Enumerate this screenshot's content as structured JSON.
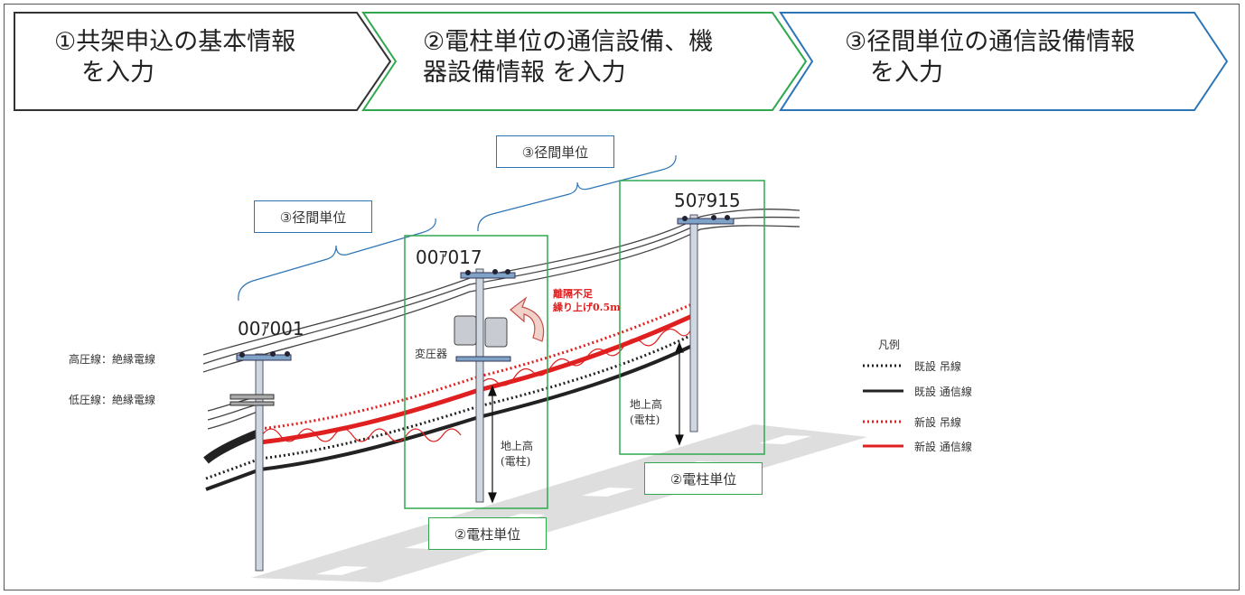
{
  "steps": [
    {
      "line1": "①共架申込の基本情報",
      "line2": "を入力"
    },
    {
      "line1": "②電柱単位の通信設備、機",
      "line2": "器設備情報 を入力"
    },
    {
      "line1": "③径間単位の通信設備情報",
      "line2": "を入力"
    }
  ],
  "span_labels": [
    "③径間単位",
    "③径間単位"
  ],
  "pole_labels": [
    "②電柱単位",
    "②電柱単位"
  ],
  "pole_ids": [
    "00ｱ001",
    "00ｱ017",
    "50ｱ915"
  ],
  "wire_labels": {
    "high_voltage": "高圧線：絶縁電線",
    "low_voltage": "低圧線：絶縁電線",
    "transformer": "変圧器"
  },
  "clearance_alert": {
    "line1": "離隔不足",
    "line2": "繰り上げ0.5m"
  },
  "ground_height": {
    "line1": "地上高",
    "line2": "(電柱)"
  },
  "legend": {
    "title": "凡例",
    "items": [
      {
        "label": "既設 吊線",
        "color": "#222222",
        "style": "dotted"
      },
      {
        "label": "既設 通信線",
        "color": "#222222",
        "style": "solid"
      },
      {
        "label": "新設 吊線",
        "color": "#e02020",
        "style": "dotted"
      },
      {
        "label": "新設 通信線",
        "color": "#e02020",
        "style": "solid"
      }
    ]
  },
  "colors": {
    "step1": "#333333",
    "step2": "#2fa84f",
    "step3": "#2e75b6",
    "new": "#e02020",
    "existing": "#222222"
  }
}
